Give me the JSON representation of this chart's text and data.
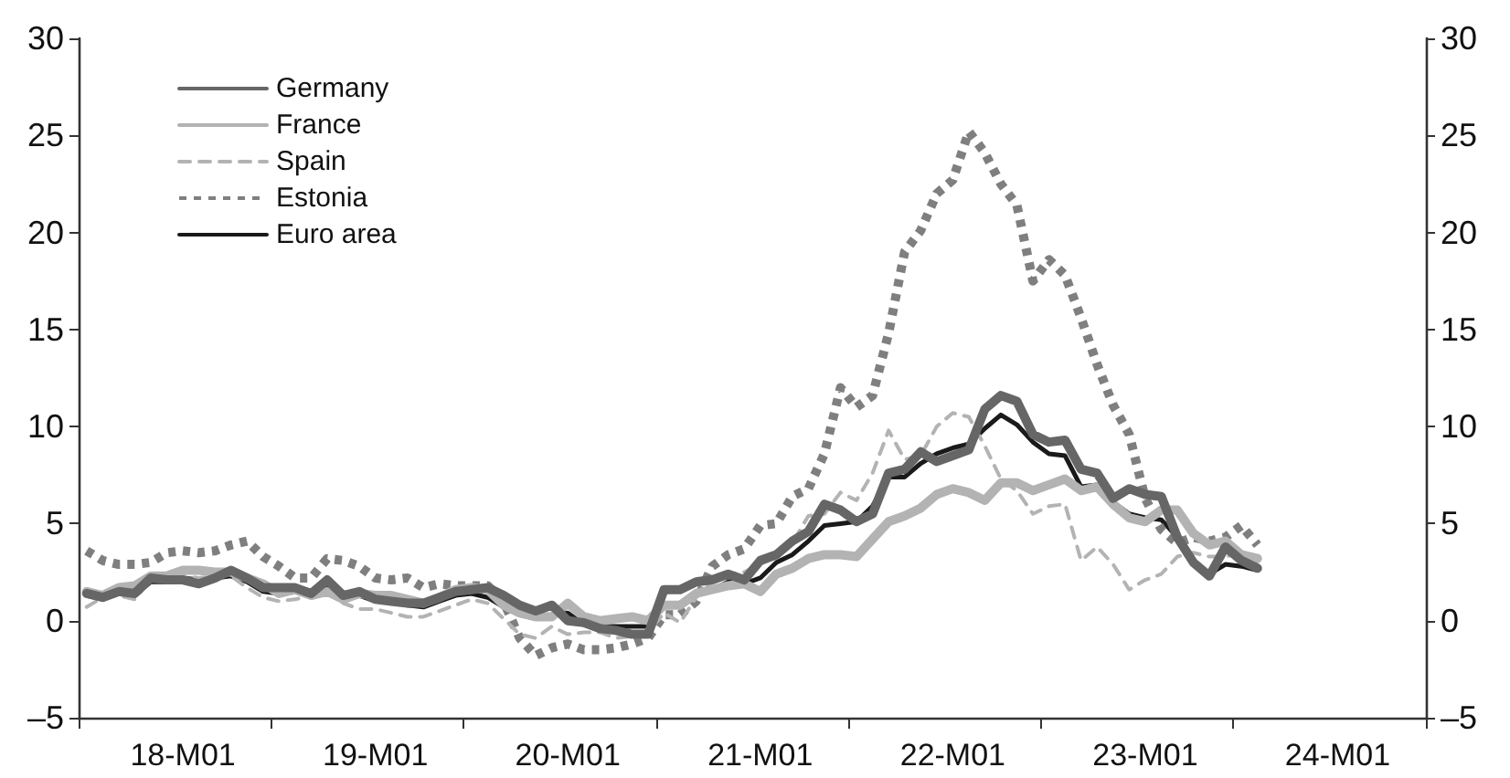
{
  "chart_data": {
    "type": "line",
    "categories": [
      null,
      null,
      null,
      null,
      null,
      null,
      "18-M01",
      null,
      null,
      null,
      null,
      null,
      null,
      null,
      null,
      null,
      null,
      null,
      "19-M01",
      null,
      null,
      null,
      null,
      null,
      null,
      null,
      null,
      null,
      null,
      null,
      "20-M01",
      null,
      null,
      null,
      null,
      null,
      null,
      null,
      null,
      null,
      null,
      null,
      "21-M01",
      null,
      null,
      null,
      null,
      null,
      null,
      null,
      null,
      null,
      null,
      null,
      "22-M01",
      null,
      null,
      null,
      null,
      null,
      null,
      null,
      null,
      null,
      null,
      null,
      "23-M01",
      null,
      null,
      null,
      null,
      null,
      null,
      null,
      null,
      null,
      null,
      null,
      "24-M01",
      null,
      null,
      null,
      null,
      null
    ],
    "series": [
      {
        "name": "Germany",
        "color": "#666666",
        "line_style": "solid",
        "values": [
          1.4,
          1.2,
          1.5,
          1.4,
          2.2,
          2.1,
          2.1,
          1.9,
          2.2,
          2.6,
          2.2,
          1.7,
          1.7,
          1.7,
          1.4,
          2.1,
          1.3,
          1.5,
          1.1,
          1.0,
          0.9,
          0.9,
          1.2,
          1.5,
          1.6,
          1.7,
          1.3,
          0.8,
          0.5,
          0.8,
          0.0,
          -0.1,
          -0.4,
          -0.5,
          -0.7,
          -0.7,
          1.6,
          1.6,
          2.0,
          2.1,
          2.4,
          2.1,
          3.1,
          3.4,
          4.1,
          4.6,
          6.0,
          5.7,
          5.1,
          5.5,
          7.6,
          7.8,
          8.7,
          8.2,
          8.5,
          8.8,
          10.9,
          11.6,
          11.3,
          9.6,
          9.2,
          9.3,
          7.8,
          7.6,
          6.3,
          6.8,
          6.5,
          6.4,
          4.3,
          3.0,
          2.3,
          3.8,
          3.1,
          2.7,
          null,
          null,
          null,
          null,
          null,
          null,
          null,
          null,
          null,
          null
        ]
      },
      {
        "name": "France",
        "color": "#b3b3b3",
        "line_style": "solid",
        "values": [
          1.5,
          1.3,
          1.7,
          1.8,
          2.3,
          2.3,
          2.6,
          2.6,
          2.5,
          2.5,
          2.2,
          1.9,
          1.4,
          1.6,
          1.3,
          1.5,
          1.1,
          1.4,
          1.3,
          1.3,
          1.1,
          0.9,
          1.2,
          1.6,
          1.7,
          1.6,
          0.8,
          0.4,
          0.2,
          0.2,
          0.9,
          0.2,
          0.0,
          0.1,
          0.2,
          0.0,
          0.8,
          0.8,
          1.4,
          1.6,
          1.8,
          1.9,
          1.5,
          2.4,
          2.7,
          3.2,
          3.4,
          3.4,
          3.3,
          4.2,
          5.1,
          5.4,
          5.8,
          6.5,
          6.8,
          6.6,
          6.2,
          7.1,
          7.1,
          6.7,
          7.0,
          7.3,
          6.7,
          6.9,
          6.0,
          5.3,
          5.1,
          5.7,
          5.7,
          4.5,
          3.9,
          4.1,
          3.4,
          3.2,
          null,
          null,
          null,
          null,
          null,
          null,
          null,
          null,
          null,
          null
        ]
      },
      {
        "name": "Spain",
        "color": "#b3b3b3",
        "line_style": "dashed",
        "values": [
          0.7,
          1.2,
          1.3,
          1.1,
          2.1,
          2.3,
          2.3,
          2.2,
          2.3,
          2.3,
          1.7,
          1.2,
          1.0,
          1.1,
          1.3,
          1.6,
          0.9,
          0.6,
          0.6,
          0.4,
          0.2,
          0.2,
          0.5,
          0.8,
          1.1,
          0.9,
          0.1,
          -0.7,
          -0.9,
          -0.3,
          -0.7,
          -0.6,
          -0.6,
          -0.9,
          -0.8,
          -0.6,
          0.4,
          -0.1,
          1.2,
          2.0,
          2.4,
          2.5,
          2.9,
          3.3,
          4.0,
          5.4,
          5.5,
          6.6,
          6.2,
          7.6,
          9.8,
          8.3,
          8.5,
          10.0,
          10.7,
          10.5,
          9.0,
          7.3,
          6.7,
          5.5,
          5.9,
          6.0,
          3.1,
          3.8,
          2.9,
          1.6,
          2.1,
          2.4,
          3.3,
          3.5,
          3.3,
          3.3,
          3.5,
          2.9,
          null,
          null,
          null,
          null,
          null,
          null,
          null,
          null,
          null,
          null
        ]
      },
      {
        "name": "Estonia",
        "color": "#7f7f7f",
        "line_style": "dotted",
        "values": [
          3.6,
          3.1,
          2.9,
          2.9,
          3.0,
          3.5,
          3.6,
          3.5,
          3.6,
          3.9,
          4.1,
          3.3,
          2.8,
          2.2,
          2.2,
          3.2,
          3.1,
          2.8,
          2.2,
          2.1,
          2.2,
          1.7,
          1.9,
          1.8,
          1.8,
          1.8,
          1.0,
          -0.9,
          -1.8,
          -1.4,
          -1.2,
          -1.5,
          -1.5,
          -1.4,
          -1.2,
          -0.9,
          0.3,
          0.3,
          1.0,
          2.8,
          3.4,
          3.7,
          4.9,
          5.0,
          6.4,
          6.8,
          8.6,
          12.0,
          11.0,
          11.6,
          14.8,
          19.0,
          20.1,
          22.0,
          22.7,
          25.2,
          24.1,
          22.5,
          21.4,
          17.5,
          18.6,
          17.8,
          15.6,
          13.2,
          11.1,
          9.6,
          6.3,
          4.7,
          4.0,
          4.3,
          4.1,
          4.3,
          4.9,
          3.9,
          null,
          null,
          null,
          null,
          null,
          null,
          null,
          null,
          null,
          null
        ]
      },
      {
        "name": "Euro area",
        "color": "#1a1a1a",
        "line_style": "solid",
        "values": [
          1.3,
          1.1,
          1.4,
          1.3,
          2.0,
          2.0,
          2.2,
          2.1,
          2.2,
          2.3,
          2.0,
          1.5,
          1.4,
          1.5,
          1.4,
          1.7,
          1.2,
          1.3,
          1.0,
          1.0,
          0.8,
          0.7,
          1.0,
          1.3,
          1.4,
          1.2,
          0.7,
          0.3,
          0.1,
          0.3,
          0.4,
          -0.2,
          -0.3,
          -0.3,
          -0.3,
          -0.3,
          0.9,
          0.9,
          1.3,
          1.6,
          2.0,
          1.9,
          2.2,
          3.0,
          3.4,
          4.1,
          4.9,
          5.0,
          5.1,
          5.9,
          7.4,
          7.4,
          8.1,
          8.6,
          8.9,
          9.1,
          9.9,
          10.6,
          10.1,
          9.2,
          8.6,
          8.5,
          6.9,
          7.0,
          6.1,
          5.5,
          5.3,
          5.2,
          4.3,
          2.9,
          2.4,
          2.9,
          2.8,
          2.6,
          null,
          null,
          null,
          null,
          null,
          null,
          null,
          null,
          null,
          null
        ]
      }
    ],
    "ylim": [
      -5,
      30
    ],
    "yticks": [
      {
        "value": -5,
        "label": "–5"
      },
      0,
      5,
      10,
      15,
      20,
      25,
      30
    ],
    "y2lim": [
      -5,
      30
    ],
    "y2ticks": [
      {
        "value": -5,
        "label": "–5"
      },
      0,
      5,
      10,
      15,
      20,
      25,
      30
    ],
    "grid": false,
    "legend": "top left",
    "marker": "none"
  }
}
